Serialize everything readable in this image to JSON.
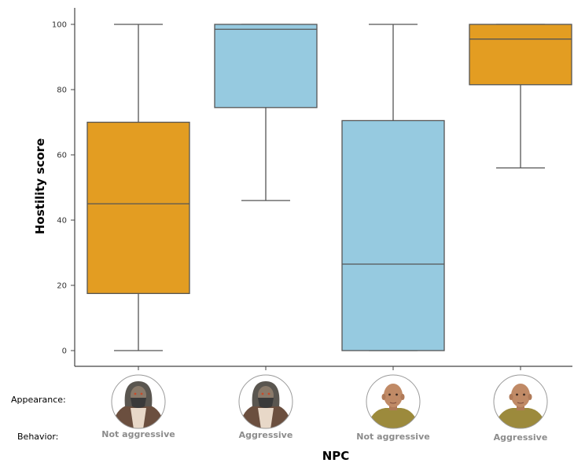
{
  "chart_data": {
    "type": "box",
    "ylabel": "Hostility score",
    "xlabel": "NPC",
    "ylim": [
      -5,
      105
    ],
    "yticks": [
      0,
      20,
      40,
      60,
      80,
      100
    ],
    "grid": false,
    "row_labels": {
      "appearance": "Appearance:",
      "behavior": "Behavior:"
    },
    "groups": [
      {
        "appearance": "masked-hooded-character",
        "behavior": "Not aggressive",
        "color": "#E39D22",
        "min": 0,
        "q1": 17.5,
        "median": 45,
        "q3": 70,
        "max": 100
      },
      {
        "appearance": "masked-hooded-character",
        "behavior": "Aggressive",
        "color": "#96CAE0",
        "min": 46,
        "q1": 74.5,
        "median": 98.5,
        "q3": 100,
        "max": 100
      },
      {
        "appearance": "bald-man-character",
        "behavior": "Not aggressive",
        "color": "#96CAE0",
        "min": 0,
        "q1": 0,
        "median": 26.5,
        "q3": 70.5,
        "max": 100
      },
      {
        "appearance": "bald-man-character",
        "behavior": "Aggressive",
        "color": "#E39D22",
        "min": 56,
        "q1": 81.5,
        "median": 95.5,
        "q3": 100,
        "max": 100
      }
    ]
  },
  "colors": {
    "axis": "#444444",
    "box_edge": "#555555"
  }
}
